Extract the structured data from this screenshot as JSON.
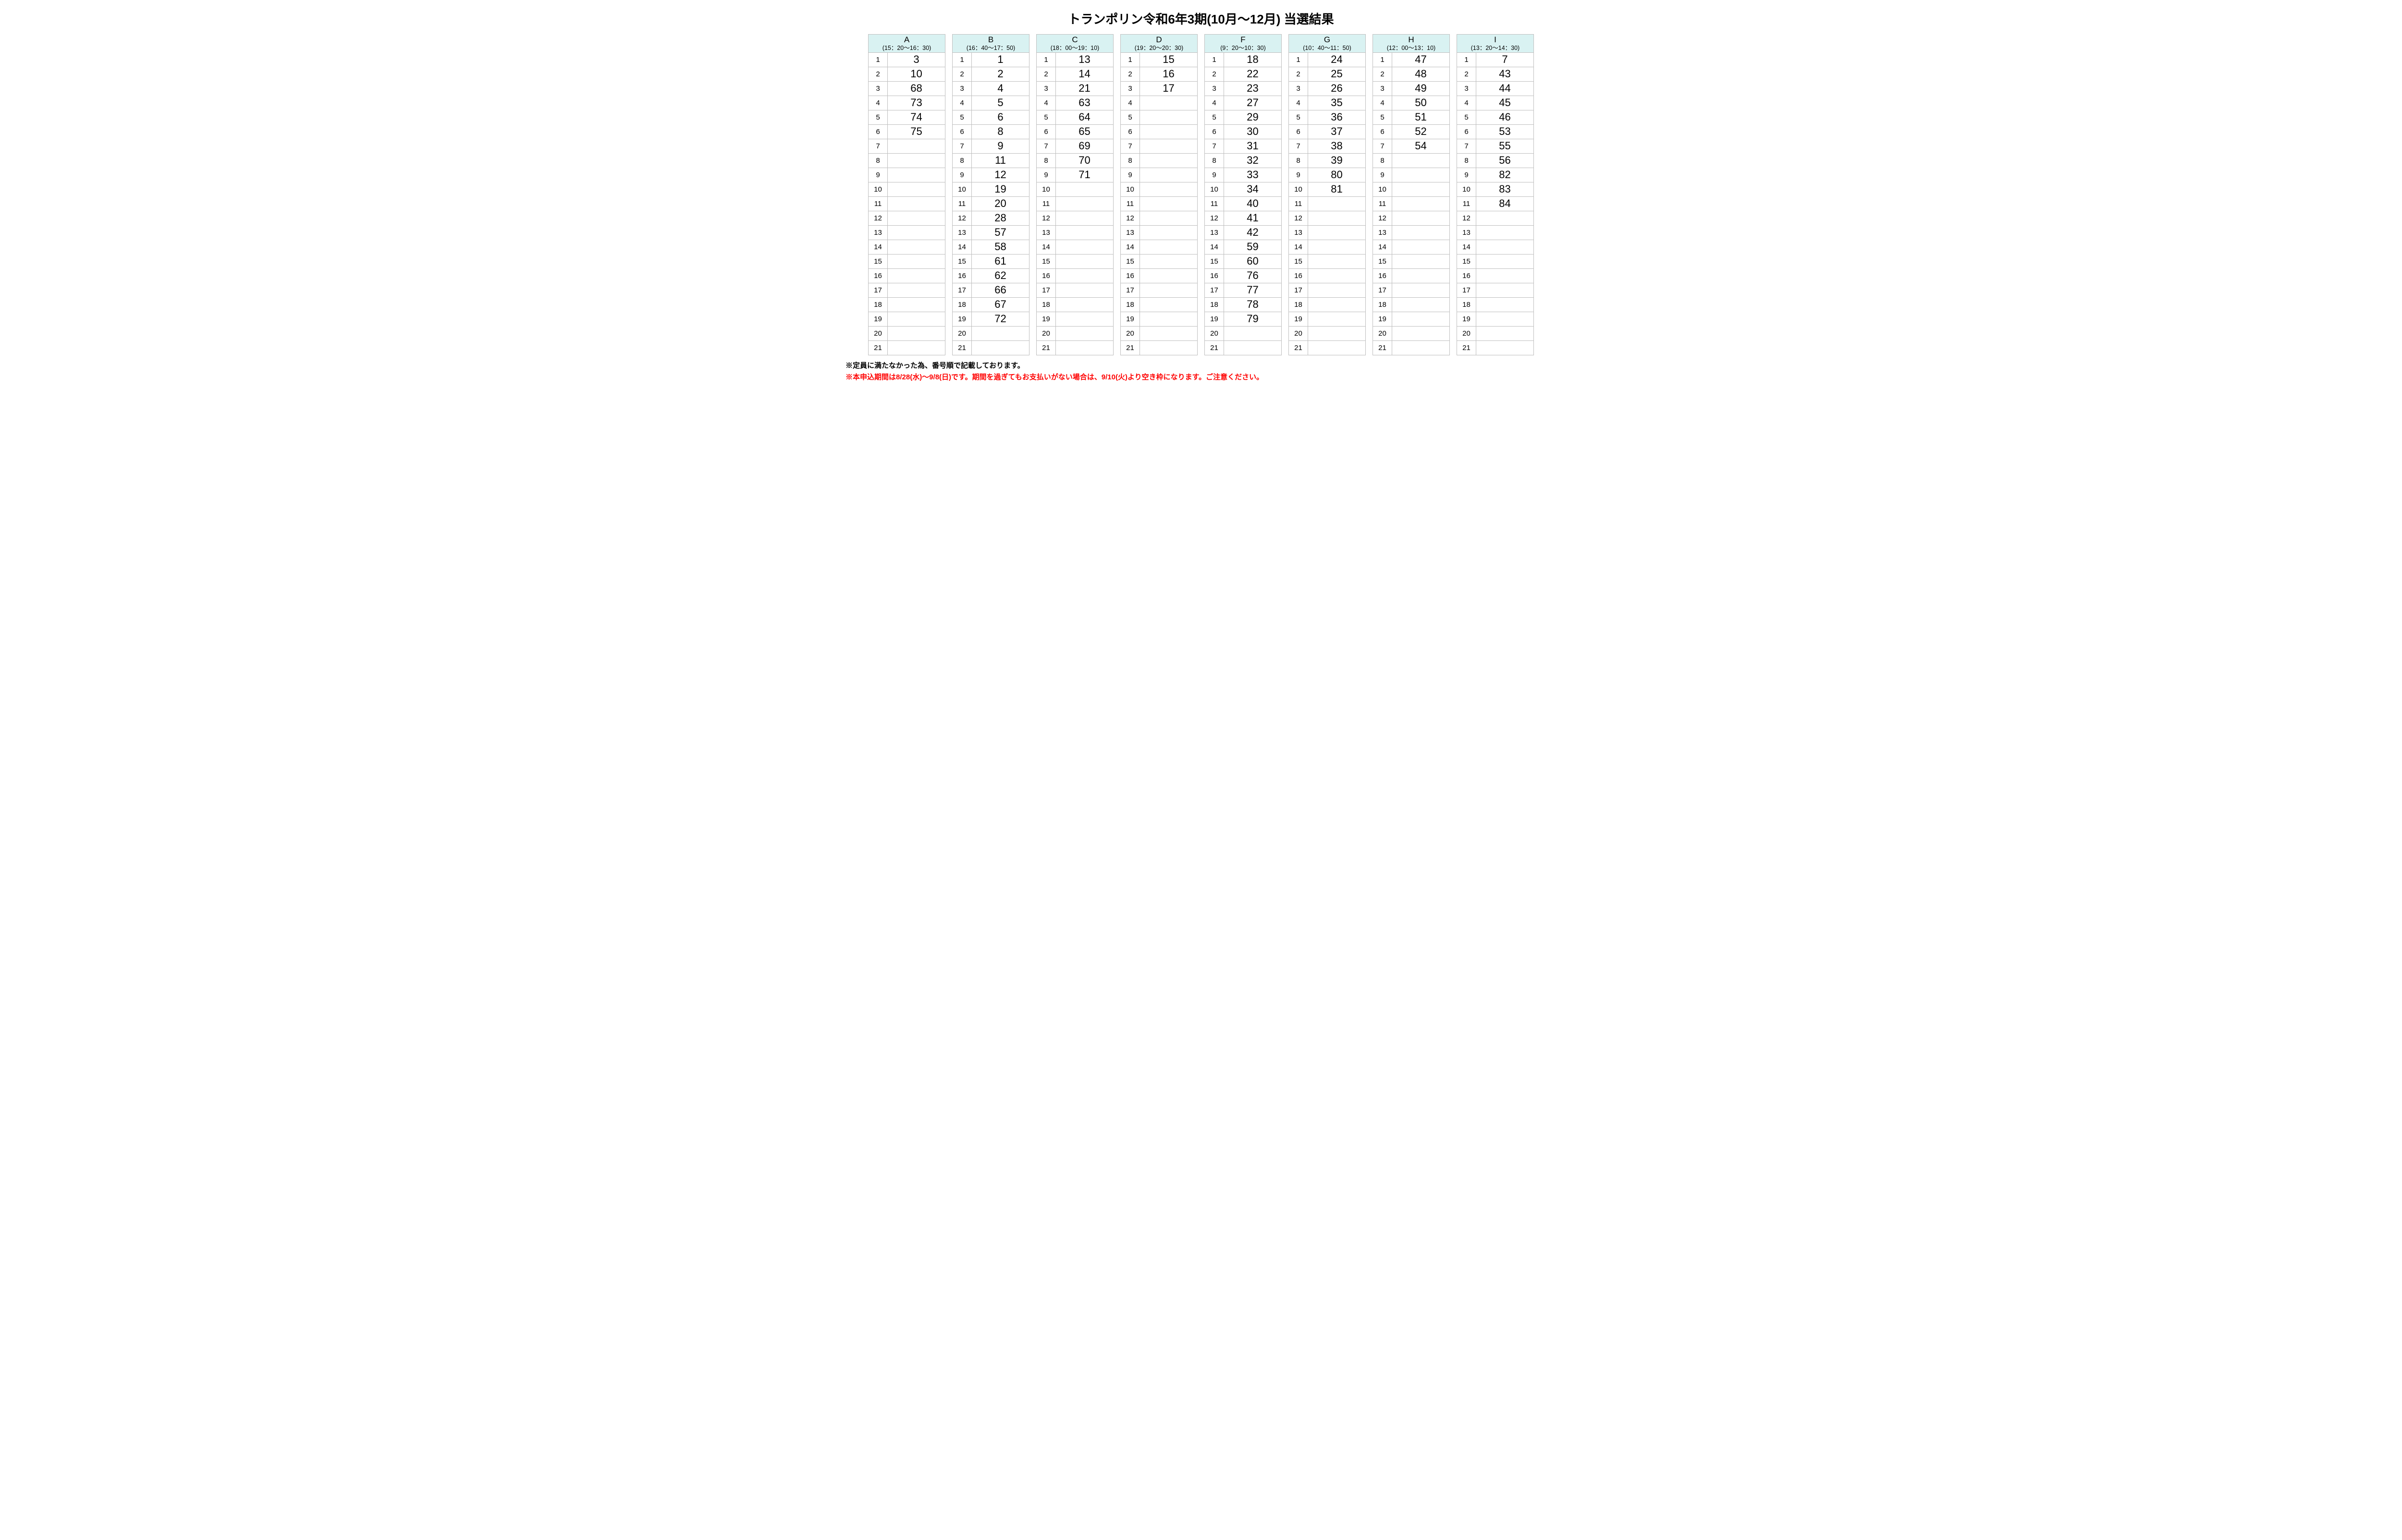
{
  "title": "トランポリン令和6年3期(10月～12月) 当選結果",
  "row_count": 21,
  "header_bg": "#d9f2f2",
  "border_color": "#bfbfbf",
  "groups": [
    {
      "letter": "A",
      "time": "(15：20～16：30)",
      "values": [
        "3",
        "10",
        "68",
        "73",
        "74",
        "75",
        "",
        "",
        "",
        "",
        "",
        "",
        "",
        "",
        "",
        "",
        "",
        "",
        "",
        "",
        ""
      ]
    },
    {
      "letter": "B",
      "time": "(16：40～17：50)",
      "values": [
        "1",
        "2",
        "4",
        "5",
        "6",
        "8",
        "9",
        "11",
        "12",
        "19",
        "20",
        "28",
        "57",
        "58",
        "61",
        "62",
        "66",
        "67",
        "72",
        "",
        ""
      ]
    },
    {
      "letter": "C",
      "time": "(18：00～19：10)",
      "values": [
        "13",
        "14",
        "21",
        "63",
        "64",
        "65",
        "69",
        "70",
        "71",
        "",
        "",
        "",
        "",
        "",
        "",
        "",
        "",
        "",
        "",
        "",
        ""
      ]
    },
    {
      "letter": "D",
      "time": "(19：20～20：30)",
      "values": [
        "15",
        "16",
        "17",
        "",
        "",
        "",
        "",
        "",
        "",
        "",
        "",
        "",
        "",
        "",
        "",
        "",
        "",
        "",
        "",
        "",
        ""
      ]
    },
    {
      "letter": "F",
      "time": "(9：20～10：30)",
      "values": [
        "18",
        "22",
        "23",
        "27",
        "29",
        "30",
        "31",
        "32",
        "33",
        "34",
        "40",
        "41",
        "42",
        "59",
        "60",
        "76",
        "77",
        "78",
        "79",
        "",
        ""
      ]
    },
    {
      "letter": "G",
      "time": "(10：40～11：50)",
      "values": [
        "24",
        "25",
        "26",
        "35",
        "36",
        "37",
        "38",
        "39",
        "80",
        "81",
        "",
        "",
        "",
        "",
        "",
        "",
        "",
        "",
        "",
        "",
        ""
      ]
    },
    {
      "letter": "H",
      "time": "(12：00～13：10)",
      "values": [
        "47",
        "48",
        "49",
        "50",
        "51",
        "52",
        "54",
        "",
        "",
        "",
        "",
        "",
        "",
        "",
        "",
        "",
        "",
        "",
        "",
        "",
        ""
      ]
    },
    {
      "letter": "I",
      "time": "(13：20～14：30)",
      "values": [
        "7",
        "43",
        "44",
        "45",
        "46",
        "53",
        "55",
        "56",
        "82",
        "83",
        "84",
        "",
        "",
        "",
        "",
        "",
        "",
        "",
        "",
        "",
        ""
      ]
    }
  ],
  "notes": {
    "line1": "※定員に満たなかった為、番号順で記載しております。",
    "line2": "※本申込期間は8/28(水)～9/8(日)です。期間を過ぎてもお支払いがない場合は、9/10(火)より空き枠になります。ご注意ください。",
    "line2_color": "#ff0000"
  }
}
